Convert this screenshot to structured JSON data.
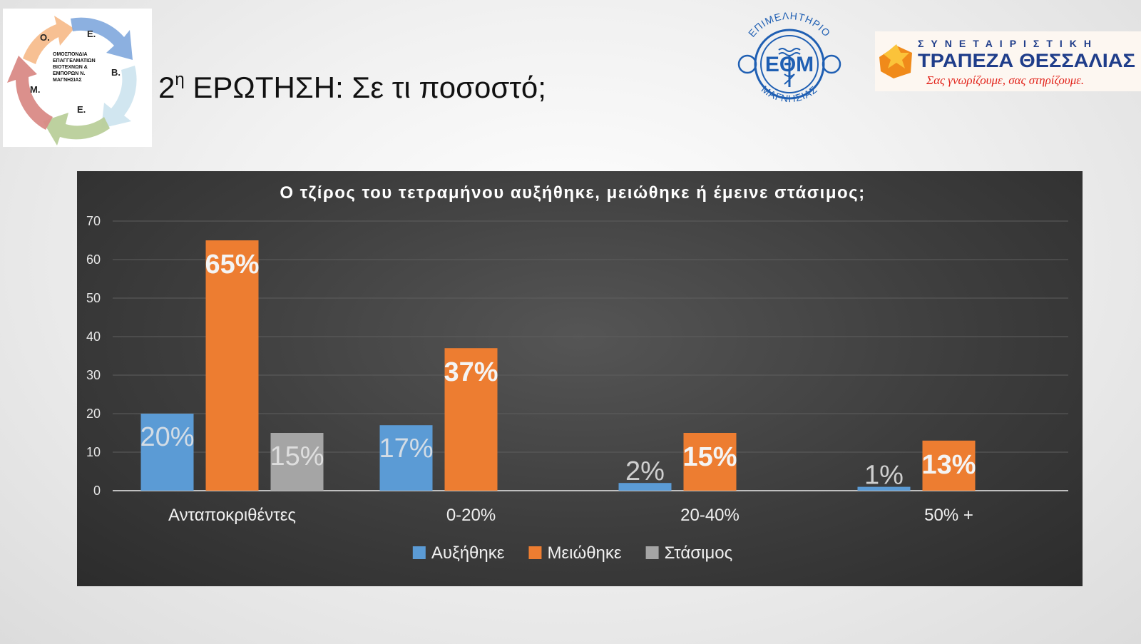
{
  "header": {
    "title_prefix": "2",
    "title_sup": "η",
    "title_rest": " ΕΡΩΤΗΣΗ: Σε τι ποσοστό;"
  },
  "logos": {
    "left": {
      "lines": [
        "ΟΜΟΣΠΟΝΔΙΑ",
        "ΕΠΑΓΓΕΛΜΑΤΙΩΝ",
        "ΒΙΟΤΕΧΝΩΝ &",
        "ΕΜΠΟΡΩΝ Ν.",
        "ΜΑΓΝΗΣΙΑΣ"
      ],
      "letters": [
        "Ο.",
        "Ε.",
        "Β.",
        "Ε.",
        "Μ."
      ]
    },
    "eom": {
      "top_text": "ΕΠΙΜΕΛΗΤΗΡΙΟ",
      "center_text": "ΕΘΜ",
      "bottom_text": "ΜΑΓΝΗΣΙΑΣ"
    },
    "bank": {
      "small_text": "ΣΥΝΕΤΑΙΡΙΣΤΙΚΗ",
      "name": "ΤΡΑΠΕΖΑ ΘΕΣΣΑΛΙΑΣ",
      "slogan": "Σας γνωρίζουμε, σας στηρίζουμε."
    }
  },
  "colors": {
    "series_blue": "#5b9bd5",
    "series_orange": "#ed7d31",
    "series_gray": "#a5a5a5"
  },
  "chart_data": {
    "type": "bar",
    "title": "Ο τζίρος του τετραμήνου αυξήθηκε, μειώθηκε ή έμεινε στάσιμος;",
    "categories": [
      "Ανταποκριθέντες",
      "0-20%",
      "20-40%",
      "50% +"
    ],
    "series": [
      {
        "name": "Αυξήθηκε",
        "values": [
          20,
          17,
          2,
          1
        ],
        "labels": [
          "20%",
          "17%",
          "2%",
          "1%"
        ]
      },
      {
        "name": "Μειώθηκε",
        "values": [
          65,
          37,
          15,
          13
        ],
        "labels": [
          "65%",
          "37%",
          "15%",
          "13%"
        ]
      },
      {
        "name": "Στάσιμος",
        "values": [
          15,
          null,
          null,
          null
        ],
        "labels": [
          "15%",
          "",
          "",
          ""
        ]
      }
    ],
    "ylim": [
      0,
      70
    ],
    "yticks": [
      0,
      10,
      20,
      30,
      40,
      50,
      60,
      70
    ],
    "grid": true,
    "legend": "bottom"
  }
}
